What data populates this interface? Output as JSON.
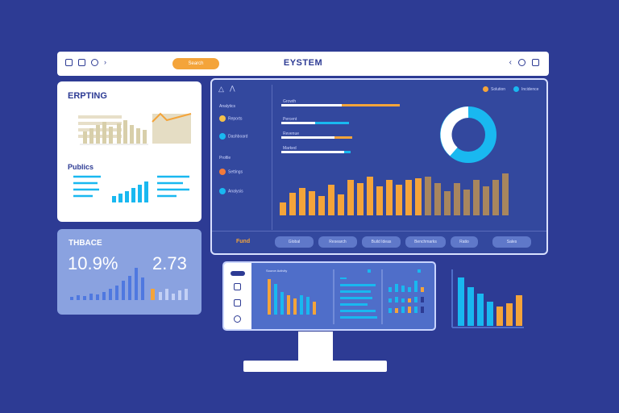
{
  "topbar": {
    "pill_label": "Search",
    "title": "EYSTEM"
  },
  "left_card": {
    "heading": "ERPTING",
    "subheading": "Publics"
  },
  "stats_card": {
    "label": "THBACE",
    "value_1": "10.9%",
    "value_2": "2.73"
  },
  "dashboard": {
    "legend": [
      "Solution",
      "Incidence"
    ],
    "side_items": [
      "Analytics",
      "Reports",
      "Dashboard",
      "Profile",
      "Settings",
      "Analysis"
    ],
    "bar_labels": [
      "Growth",
      "Percent",
      "Revenue",
      "Marked"
    ],
    "footer_label": "Fund",
    "footer_buttons": [
      "Global",
      "Research",
      "Build Ideas",
      "Benchmarks",
      "Ratio",
      "Sales"
    ]
  },
  "monitor": {
    "panel_title": "Source Activity"
  },
  "colors": {
    "background": "#2d3b94",
    "accent_orange": "#f4a43a",
    "accent_cyan": "#19b8f0",
    "tan": "#a8865e",
    "panel_blue": "#33489e"
  }
}
